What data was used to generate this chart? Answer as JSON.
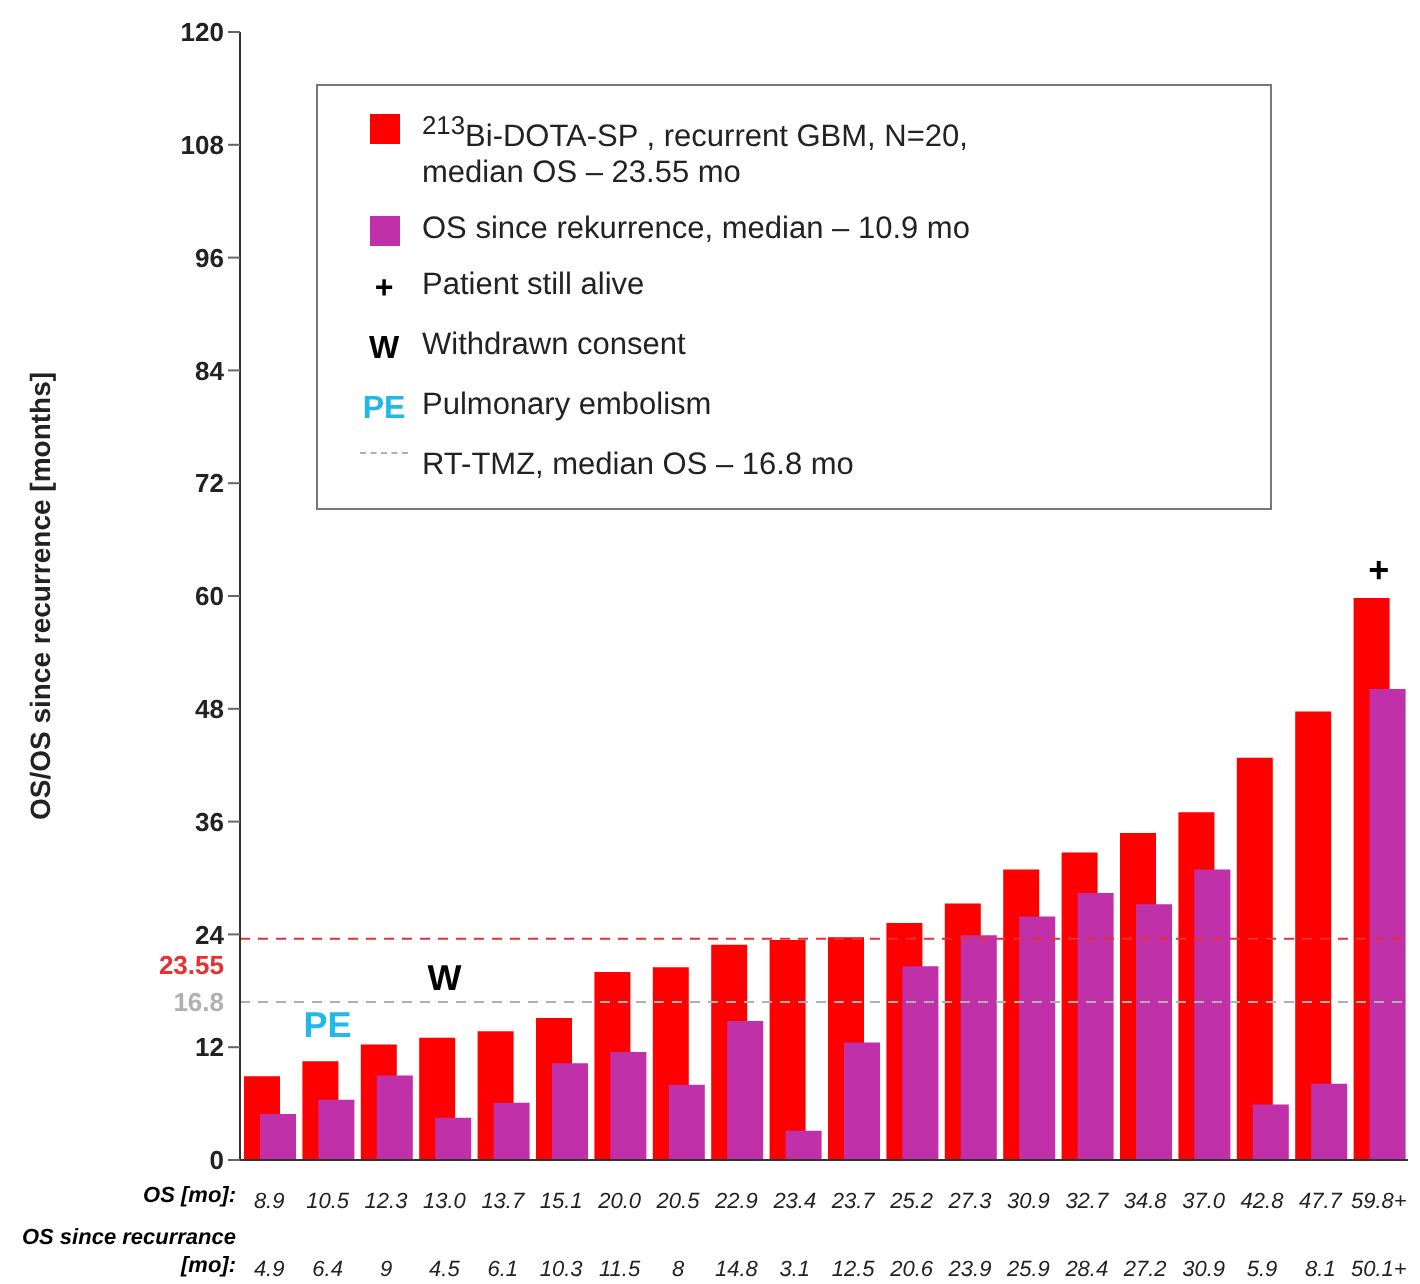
{
  "chart_data": {
    "type": "bar",
    "ylabel": "OS/OS since recurrence [months]",
    "categories": [
      "8.9",
      "10.5",
      "12.3",
      "13.0",
      "13.7",
      "15.1",
      "20.0",
      "20.5",
      "22.9",
      "23.4",
      "23.7",
      "25.2",
      "27.3",
      "30.9",
      "32.7",
      "34.8",
      "37.0",
      "42.8",
      "47.7",
      "59.8+"
    ],
    "series": [
      {
        "name": "$^{213}$Bi-DOTA-SP , recurrent GBM, N=20, median OS – 23.55 mo",
        "color": "#ff0000",
        "values": [
          8.9,
          10.5,
          12.3,
          13.0,
          13.7,
          15.1,
          20.0,
          20.5,
          22.9,
          23.4,
          23.7,
          25.2,
          27.3,
          30.9,
          32.7,
          34.8,
          37.0,
          42.8,
          47.7,
          59.8
        ]
      },
      {
        "name": "OS since rekurrence, median – 10.9 mo",
        "color": "#c030a8",
        "values": [
          4.9,
          6.4,
          9,
          4.5,
          6.1,
          10.3,
          11.5,
          8,
          14.8,
          3.1,
          12.5,
          20.6,
          23.9,
          25.9,
          28.4,
          27.2,
          30.9,
          5.9,
          8.1,
          50.1
        ],
        "value_labels": [
          "4.9",
          "6.4",
          "9",
          "4.5",
          "6.1",
          "10.3",
          "11.5",
          "8",
          "14.8",
          "3.1",
          "12.5",
          "20.6",
          "23.9",
          "25.9",
          "28.4",
          "27.2",
          "30.9",
          "5.9",
          "8.1",
          "50.1+"
        ]
      }
    ],
    "ylim": [
      0,
      120
    ],
    "yticks": [
      0,
      12,
      24,
      36,
      48,
      60,
      72,
      84,
      96,
      108,
      120
    ],
    "grid": false,
    "legend": "top",
    "ref_lines": [
      {
        "axis": "y",
        "value": 23.55,
        "label": "23.55",
        "color": "#e83030",
        "line_style": "dashed"
      },
      {
        "axis": "y",
        "value": 16.8,
        "label": "16.8",
        "color": "#b0b0b0",
        "line_style": "dashed"
      }
    ],
    "annotations": [
      {
        "text": "+",
        "x": "59.8+",
        "y": 59.8
      },
      {
        "text": "W",
        "x": "13.0",
        "y": 13.0
      },
      {
        "text": "PE",
        "x": "10.5",
        "y": 10.5
      },
      "Patient still alive",
      "Withdrawn consent",
      "Pulmonary embolism",
      "RT-TMZ, median OS – 16.8 mo",
      "OS [mo]:",
      "OS since recurrance [mo]:"
    ]
  }
}
